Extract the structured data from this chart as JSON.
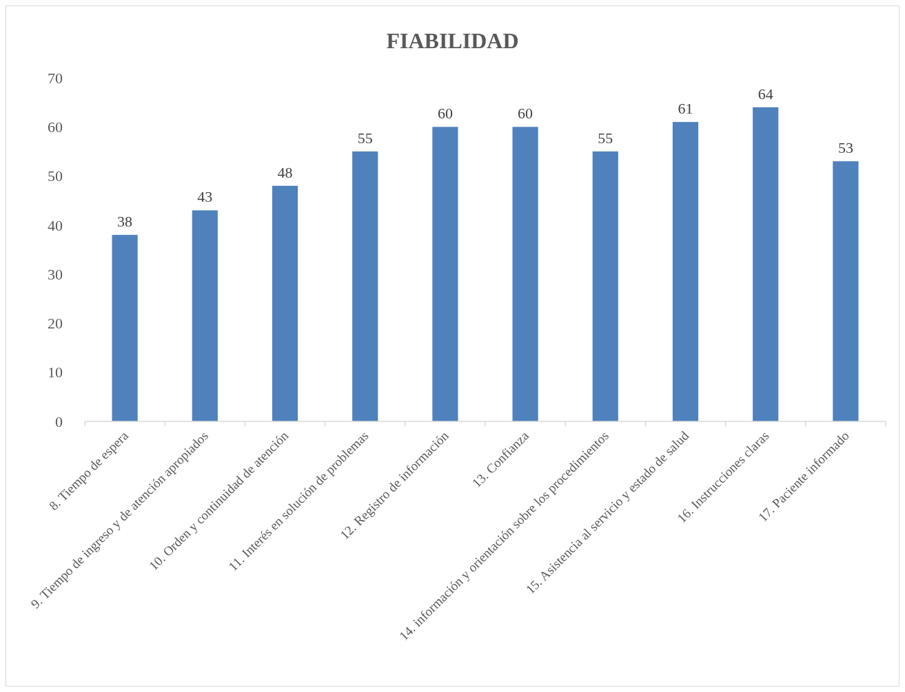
{
  "chart_data": {
    "type": "bar",
    "title": "FIABILIDAD",
    "categories": [
      "8. Tiempo de espera",
      "9. Tiempo de ingreso y de atención apropiados",
      "10. Orden y continuidad de atención",
      "11. Interés en solución de problemas",
      "12. Registro de información",
      "13. Confianza",
      "14. información y orientación sobre los procedimientos",
      "15. Asistencia al servicio y estado de salud",
      "16. Instrucciones claras",
      "17. Paciente informado"
    ],
    "values": [
      38,
      43,
      48,
      55,
      60,
      60,
      55,
      61,
      64,
      53
    ],
    "color": "#4f81bd",
    "ylim": [
      0,
      70
    ],
    "yticks": [
      0,
      10,
      20,
      30,
      40,
      50,
      60,
      70
    ],
    "data_labels": true
  }
}
